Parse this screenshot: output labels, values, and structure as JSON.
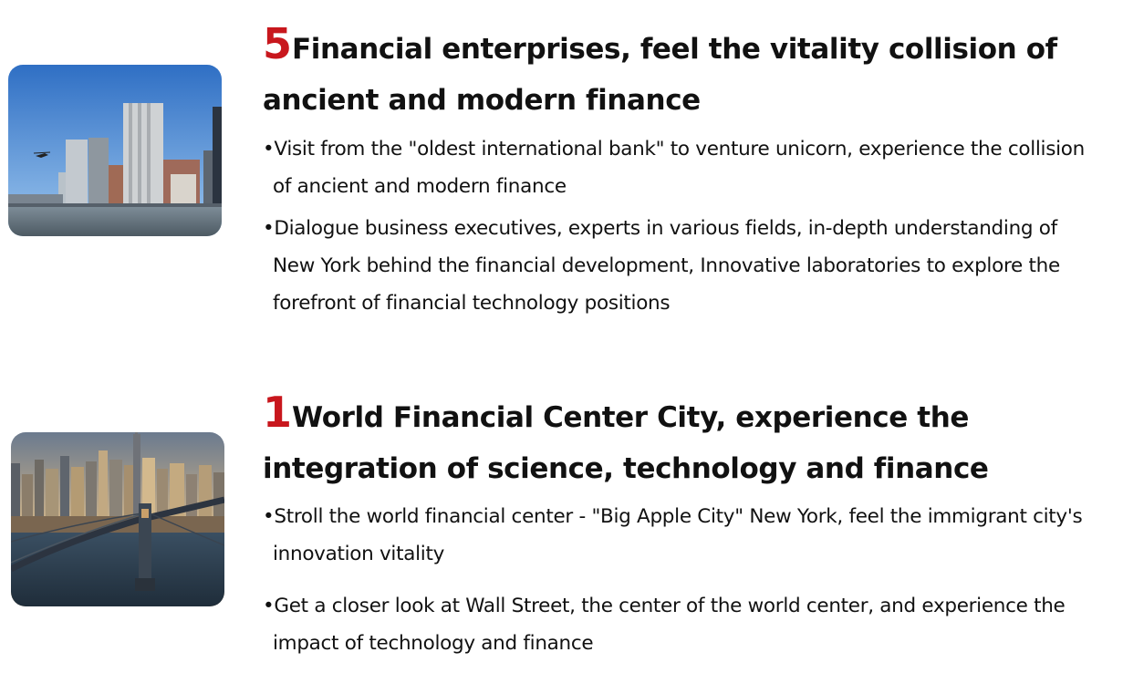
{
  "sections": [
    {
      "number": "5",
      "heading": "Financial enterprises, feel the vitality collision of ancient and modern finance",
      "image_alt": "Lower Manhattan skyline viewed from the water with a helicopter",
      "bullets": [
        "•Visit from the \"oldest international bank\" to venture unicorn, experience the collision of ancient and modern finance",
        "•Dialogue business executives, experts in various fields, in-depth understanding of New York behind the financial development, Innovative laboratories to explore the forefront of financial technology positions"
      ]
    },
    {
      "number": "1",
      "heading": "World Financial Center City, experience the integration of science, technology and finance",
      "image_alt": "Aerial view of the Manhattan Bridge and New York skyline at sunset",
      "bullets": [
        "•Stroll the world financial center - \"Big Apple City\" New York, feel the immigrant city's innovation vitality",
        "•Get a closer look at Wall Street, the center of the world center, and experience the impact of technology and finance"
      ]
    }
  ]
}
